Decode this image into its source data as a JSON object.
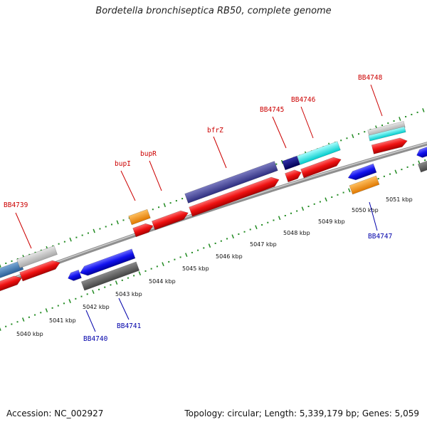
{
  "title": "Bordetella bronchiseptica RB50, complete genome",
  "footer": {
    "accession": "Accession: NC_002927",
    "topology": "Topology: circular; Length: 5,339,179 bp; Genes: 5,059"
  },
  "scale_labels": [
    "5040 kbp",
    "5041 kbp",
    "5042 kbp",
    "5043 kbp",
    "5044 kbp",
    "5045 kbp",
    "5046 kbp",
    "5047 kbp",
    "5048 kbp",
    "5049 kbp",
    "5050 kbp",
    "5051 kbp"
  ],
  "gene_labels_top": [
    "BB4739",
    "bupI",
    "bupR",
    "bfrZ",
    "BB4745",
    "BB4746",
    "BB4748"
  ],
  "gene_labels_bottom": [
    "BB4740",
    "BB4741",
    "BB4747"
  ],
  "colors": {
    "forward_label": "#cc0000",
    "reverse_label": "#0000aa",
    "forward_cds": "#ee1111",
    "reverse_cds": "#1111dd",
    "backbone": "#9a9a9a",
    "scale_ticks": "#228b22"
  }
}
